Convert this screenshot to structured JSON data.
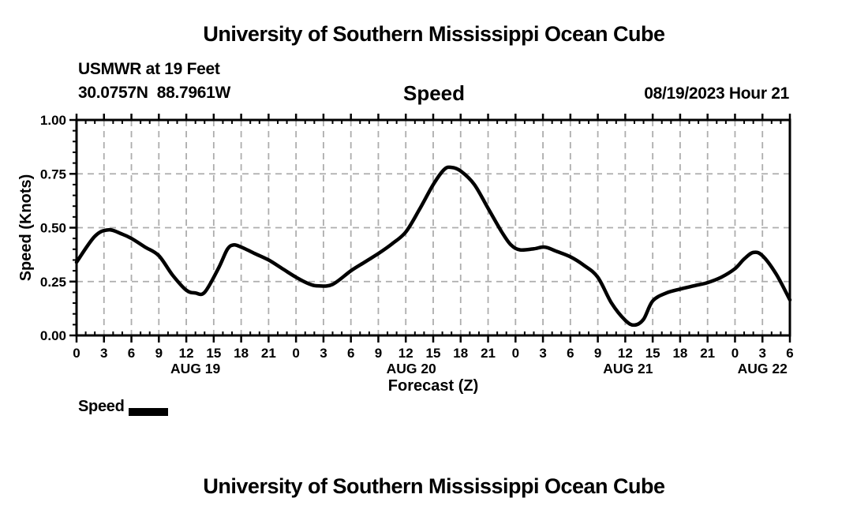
{
  "page": {
    "title_top": "University of Southern Mississippi Ocean Cube",
    "title_bottom": "University of Southern Mississippi Ocean Cube"
  },
  "header": {
    "station": "USMWR at 19 Feet",
    "coordinates": "30.0757N  88.7961W",
    "panel_title": "Speed",
    "run_datetime": "08/19/2023 Hour 21"
  },
  "chart_data": {
    "type": "line",
    "title": "Speed",
    "xlabel": "Forecast (Z)",
    "ylabel": "Speed (Knots)",
    "ylim": [
      0.0,
      1.0
    ],
    "xlim_hours": [
      0,
      78
    ],
    "x_start": "2023-08-19 00Z",
    "x_end": "2023-08-22 06Z",
    "y_ticks": [
      0.0,
      0.25,
      0.5,
      0.75,
      1.0
    ],
    "y_tick_labels": [
      "0.00",
      "0.25",
      "0.50",
      "0.75",
      "1.00"
    ],
    "y_minor_step": 0.05,
    "x_major_step_hours": 3,
    "x_minor_step_hours": 1,
    "x_tick_labels": [
      "0",
      "3",
      "6",
      "9",
      "12",
      "15",
      "18",
      "21",
      "0",
      "3",
      "6",
      "9",
      "12",
      "15",
      "18",
      "21",
      "0",
      "3",
      "6",
      "9",
      "12",
      "15",
      "18",
      "21",
      "0",
      "3",
      "6"
    ],
    "day_labels": [
      {
        "label": "AUG 19",
        "center_hour": 13
      },
      {
        "label": "AUG 20",
        "center_hour": 36.6
      },
      {
        "label": "AUG 21",
        "center_hour": 60.3
      },
      {
        "label": "AUG 22",
        "center_hour": 75
      }
    ],
    "grid": {
      "vertical_every_hours": 3,
      "horizontal_at": [
        0.25,
        0.5,
        0.75
      ],
      "style": "dashed",
      "color": "#adadad"
    },
    "legend": {
      "label": "Speed",
      "position": "bottom-left"
    },
    "series": [
      {
        "name": "Speed",
        "units": "Knots",
        "color": "#000000",
        "points_hour_knots": [
          [
            0,
            0.34
          ],
          [
            2,
            0.46
          ],
          [
            3.5,
            0.49
          ],
          [
            5,
            0.47
          ],
          [
            6,
            0.45
          ],
          [
            7.5,
            0.41
          ],
          [
            9,
            0.37
          ],
          [
            10.5,
            0.28
          ],
          [
            12,
            0.21
          ],
          [
            13,
            0.197
          ],
          [
            14,
            0.2
          ],
          [
            15.5,
            0.31
          ],
          [
            16.5,
            0.4
          ],
          [
            17.2,
            0.42
          ],
          [
            18,
            0.41
          ],
          [
            19.5,
            0.38
          ],
          [
            21,
            0.35
          ],
          [
            22.5,
            0.31
          ],
          [
            24,
            0.27
          ],
          [
            25.5,
            0.238
          ],
          [
            26.5,
            0.23
          ],
          [
            28,
            0.237
          ],
          [
            30,
            0.3
          ],
          [
            31.5,
            0.34
          ],
          [
            33,
            0.38
          ],
          [
            34.5,
            0.425
          ],
          [
            36,
            0.48
          ],
          [
            37.5,
            0.585
          ],
          [
            39,
            0.7
          ],
          [
            40.2,
            0.77
          ],
          [
            41,
            0.78
          ],
          [
            42,
            0.763
          ],
          [
            43.5,
            0.7
          ],
          [
            45,
            0.59
          ],
          [
            46.5,
            0.48
          ],
          [
            47.5,
            0.42
          ],
          [
            48.5,
            0.397
          ],
          [
            50,
            0.402
          ],
          [
            51.2,
            0.41
          ],
          [
            52.5,
            0.39
          ],
          [
            54,
            0.365
          ],
          [
            55.5,
            0.325
          ],
          [
            57,
            0.27
          ],
          [
            58.5,
            0.15
          ],
          [
            60,
            0.07
          ],
          [
            61,
            0.048
          ],
          [
            62,
            0.075
          ],
          [
            63,
            0.16
          ],
          [
            64.5,
            0.197
          ],
          [
            66,
            0.215
          ],
          [
            67.5,
            0.23
          ],
          [
            69,
            0.245
          ],
          [
            70.5,
            0.27
          ],
          [
            72,
            0.31
          ],
          [
            73,
            0.355
          ],
          [
            74,
            0.385
          ],
          [
            75,
            0.37
          ],
          [
            76.5,
            0.285
          ],
          [
            78,
            0.165
          ]
        ]
      }
    ],
    "colors": {
      "curve": "#000000",
      "grid": "#adadad",
      "axis": "#000000",
      "background": "#ffffff"
    }
  }
}
